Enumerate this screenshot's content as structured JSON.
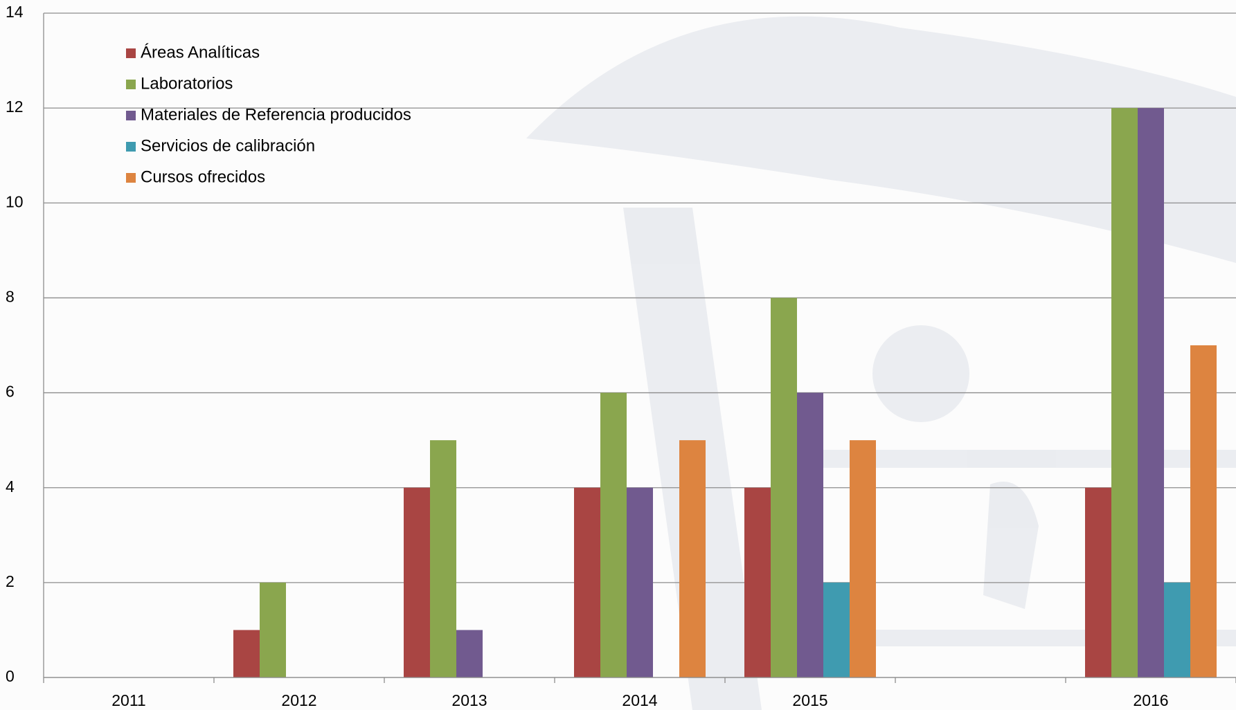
{
  "chart_data": {
    "type": "bar",
    "categories": [
      "2011",
      "2012",
      "2013",
      "2014",
      "2015",
      null,
      "2016"
    ],
    "series": [
      {
        "name": "Áreas Analíticas",
        "color": "#a94543",
        "values": [
          0,
          1,
          4,
          4,
          4,
          null,
          4
        ]
      },
      {
        "name": "Laboratorios",
        "color": "#8aa64e",
        "values": [
          0,
          2,
          5,
          6,
          8,
          null,
          12
        ]
      },
      {
        "name": "Materiales de Referencia producidos",
        "color": "#715a8f",
        "values": [
          0,
          0,
          1,
          4,
          6,
          null,
          12
        ]
      },
      {
        "name": "Servicios de calibración",
        "color": "#3f9bb0",
        "values": [
          0,
          0,
          0,
          0,
          2,
          null,
          2
        ]
      },
      {
        "name": "Cursos ofrecidos",
        "color": "#dd8440",
        "values": [
          0,
          0,
          0,
          5,
          5,
          null,
          7
        ]
      }
    ],
    "ylim": [
      0,
      14
    ],
    "yticks": [
      0,
      2,
      4,
      6,
      8,
      10,
      12,
      14
    ],
    "grid": true,
    "legend": "upper-left"
  }
}
